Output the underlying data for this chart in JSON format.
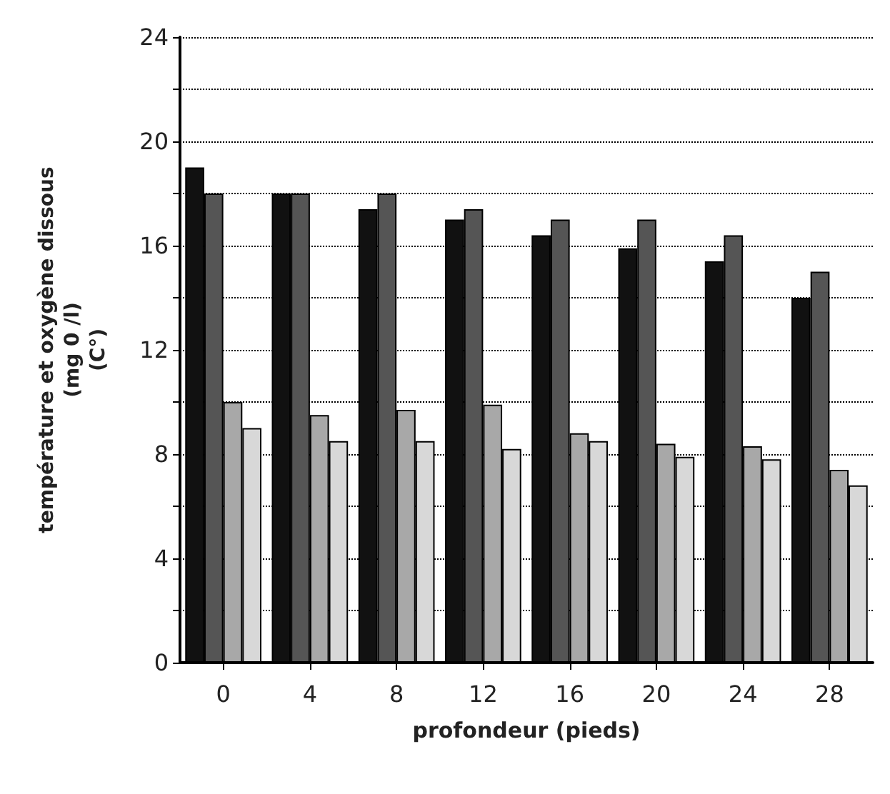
{
  "chart_data": {
    "type": "bar",
    "xlabel": "profondeur (pieds)",
    "ylabel": "température et oxygène dissous\n(mg 0 /l)\n(C°)",
    "categories": [
      "0",
      "4",
      "8",
      "12",
      "16",
      "20",
      "24",
      "28"
    ],
    "series": [
      {
        "color": "#111111",
        "values": [
          19,
          18,
          17.4,
          17,
          16.4,
          15.9,
          15.4,
          14
        ]
      },
      {
        "color": "#555555",
        "values": [
          18,
          18,
          18,
          17.4,
          17,
          17,
          16.4,
          15
        ]
      },
      {
        "color": "#a8a8a8",
        "values": [
          10,
          9.5,
          9.7,
          9.9,
          8.8,
          8.4,
          8.3,
          7.4
        ]
      },
      {
        "color": "#d8d8d8",
        "values": [
          9,
          8.5,
          8.5,
          8.2,
          8.5,
          7.9,
          7.8,
          6.8
        ]
      }
    ],
    "ylim": [
      0,
      24
    ],
    "yticks": [
      0,
      {
        "value": 2,
        "label": null
      },
      4,
      {
        "value": 6,
        "label": null
      },
      8,
      {
        "value": 10,
        "label": null
      },
      12,
      {
        "value": 14,
        "label": null
      },
      16,
      {
        "value": 18,
        "label": null
      },
      20,
      {
        "value": 22,
        "label": null
      },
      24
    ],
    "grid": "y"
  }
}
